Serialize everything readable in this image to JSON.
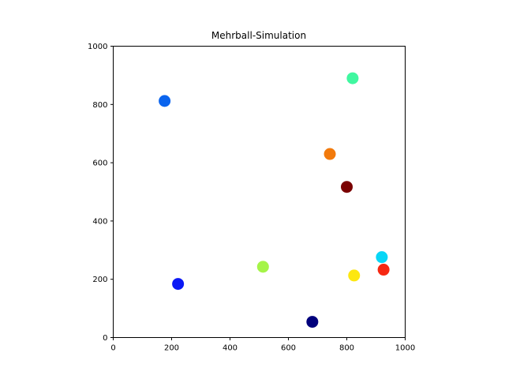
{
  "chart_data": {
    "type": "scatter",
    "title": "Mehrball-Simulation",
    "xlabel": "",
    "ylabel": "",
    "xlim": [
      0,
      1000
    ],
    "ylim": [
      0,
      1000
    ],
    "x_ticks": [
      "0",
      "200",
      "400",
      "600",
      "800",
      "1000"
    ],
    "y_ticks": [
      "0",
      "200",
      "400",
      "600",
      "800",
      "1000"
    ],
    "grid": false,
    "points": [
      {
        "x": 176,
        "y": 812,
        "color": "#0a64ee"
      },
      {
        "x": 820,
        "y": 890,
        "color": "#40f7a0"
      },
      {
        "x": 742,
        "y": 630,
        "color": "#f27a0c"
      },
      {
        "x": 800,
        "y": 517,
        "color": "#7a0000"
      },
      {
        "x": 920,
        "y": 276,
        "color": "#08d6f6"
      },
      {
        "x": 926,
        "y": 233,
        "color": "#f62812"
      },
      {
        "x": 825,
        "y": 213,
        "color": "#fde710"
      },
      {
        "x": 513,
        "y": 243,
        "color": "#a5f448"
      },
      {
        "x": 222,
        "y": 184,
        "color": "#0b18f5"
      },
      {
        "x": 682,
        "y": 54,
        "color": "#00007c"
      }
    ]
  }
}
